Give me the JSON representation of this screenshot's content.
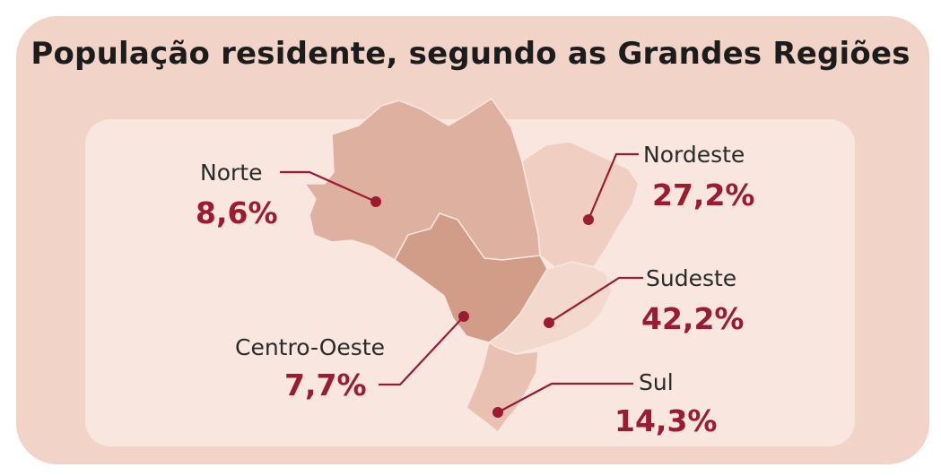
{
  "title": "População residente, segundo as Grandes Regiões",
  "colors": {
    "background": "#f1d3c8",
    "panel": "#f8e6df",
    "accent": "#9b1b30",
    "norte": "#ddb09f",
    "nordeste": "#f0cfc2",
    "centro_oeste": "#d29d88",
    "sudeste": "#f3d8cd",
    "sul": "#e8c1b2"
  },
  "regions": {
    "norte": {
      "label": "Norte",
      "value": "8,6%"
    },
    "nordeste": {
      "label": "Nordeste",
      "value": "27,2%"
    },
    "centro_oeste": {
      "label": "Centro-Oeste",
      "value": "7,7%"
    },
    "sudeste": {
      "label": "Sudeste",
      "value": "42,2%"
    },
    "sul": {
      "label": "Sul",
      "value": "14,3%"
    }
  }
}
